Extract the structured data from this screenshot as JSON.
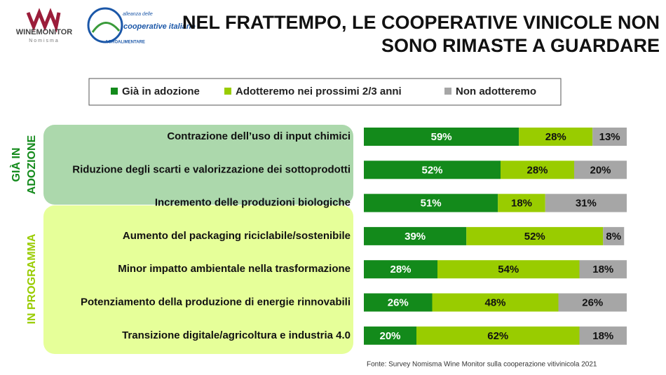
{
  "chart_data": {
    "type": "stacked-bar",
    "title": [
      "NEL FRATTEMPO, LE COOPERATIVE VINICOLE NON",
      "SONO RIMASTE A GUARDARE"
    ],
    "logos": {
      "winemonitor": "WINEMONITOR",
      "nomisma": "Nomisma",
      "alleanza": "alleanza delle",
      "cooperative": "cooperative italiane",
      "agro": "AGROALIMENTARE"
    },
    "groups": [
      {
        "lines": [
          "GIÀ IN",
          "ADOZIONE"
        ]
      },
      {
        "lines": [
          "IN PROGRAMMA"
        ]
      }
    ],
    "categories": [
      "Contrazione dell’uso di input chimici",
      "Riduzione degli scarti e valorizzazione dei sottoprodotti",
      "Incremento delle produzioni biologiche",
      "Aumento del packaging riciclabile/sostenibile",
      "Minor impatto ambientale nella trasformazione",
      "Potenziamento della produzione di energie rinnovabili",
      "Transizione digitale/agricoltura e industria 4.0"
    ],
    "series": [
      {
        "name": "Già in adozione",
        "color": "#138a1b",
        "values": [
          59,
          52,
          51,
          39,
          28,
          26,
          20
        ],
        "value_labels": [
          "59%",
          "52%",
          "51%",
          "39%",
          "28%",
          "26%",
          "20%"
        ]
      },
      {
        "name": "Adotteremo nei prossimi 2/3 anni",
        "color": "#99cc00",
        "values": [
          28,
          28,
          18,
          52,
          54,
          48,
          62
        ],
        "value_labels": [
          "28%",
          "28%",
          "18%",
          "52%",
          "54%",
          "48%",
          "62%"
        ]
      },
      {
        "name": "Non adotteremo",
        "color": "#a6a6a6",
        "values": [
          13,
          20,
          31,
          8,
          18,
          26,
          18
        ],
        "value_labels": [
          "13%",
          "20%",
          "31%",
          "8%",
          "18%",
          "26%",
          "18%"
        ]
      }
    ],
    "xlim": [
      0,
      100
    ],
    "source": "Fonte: Survey Nomisma Wine Monitor sulla cooperazione vitivinicola 2021"
  }
}
